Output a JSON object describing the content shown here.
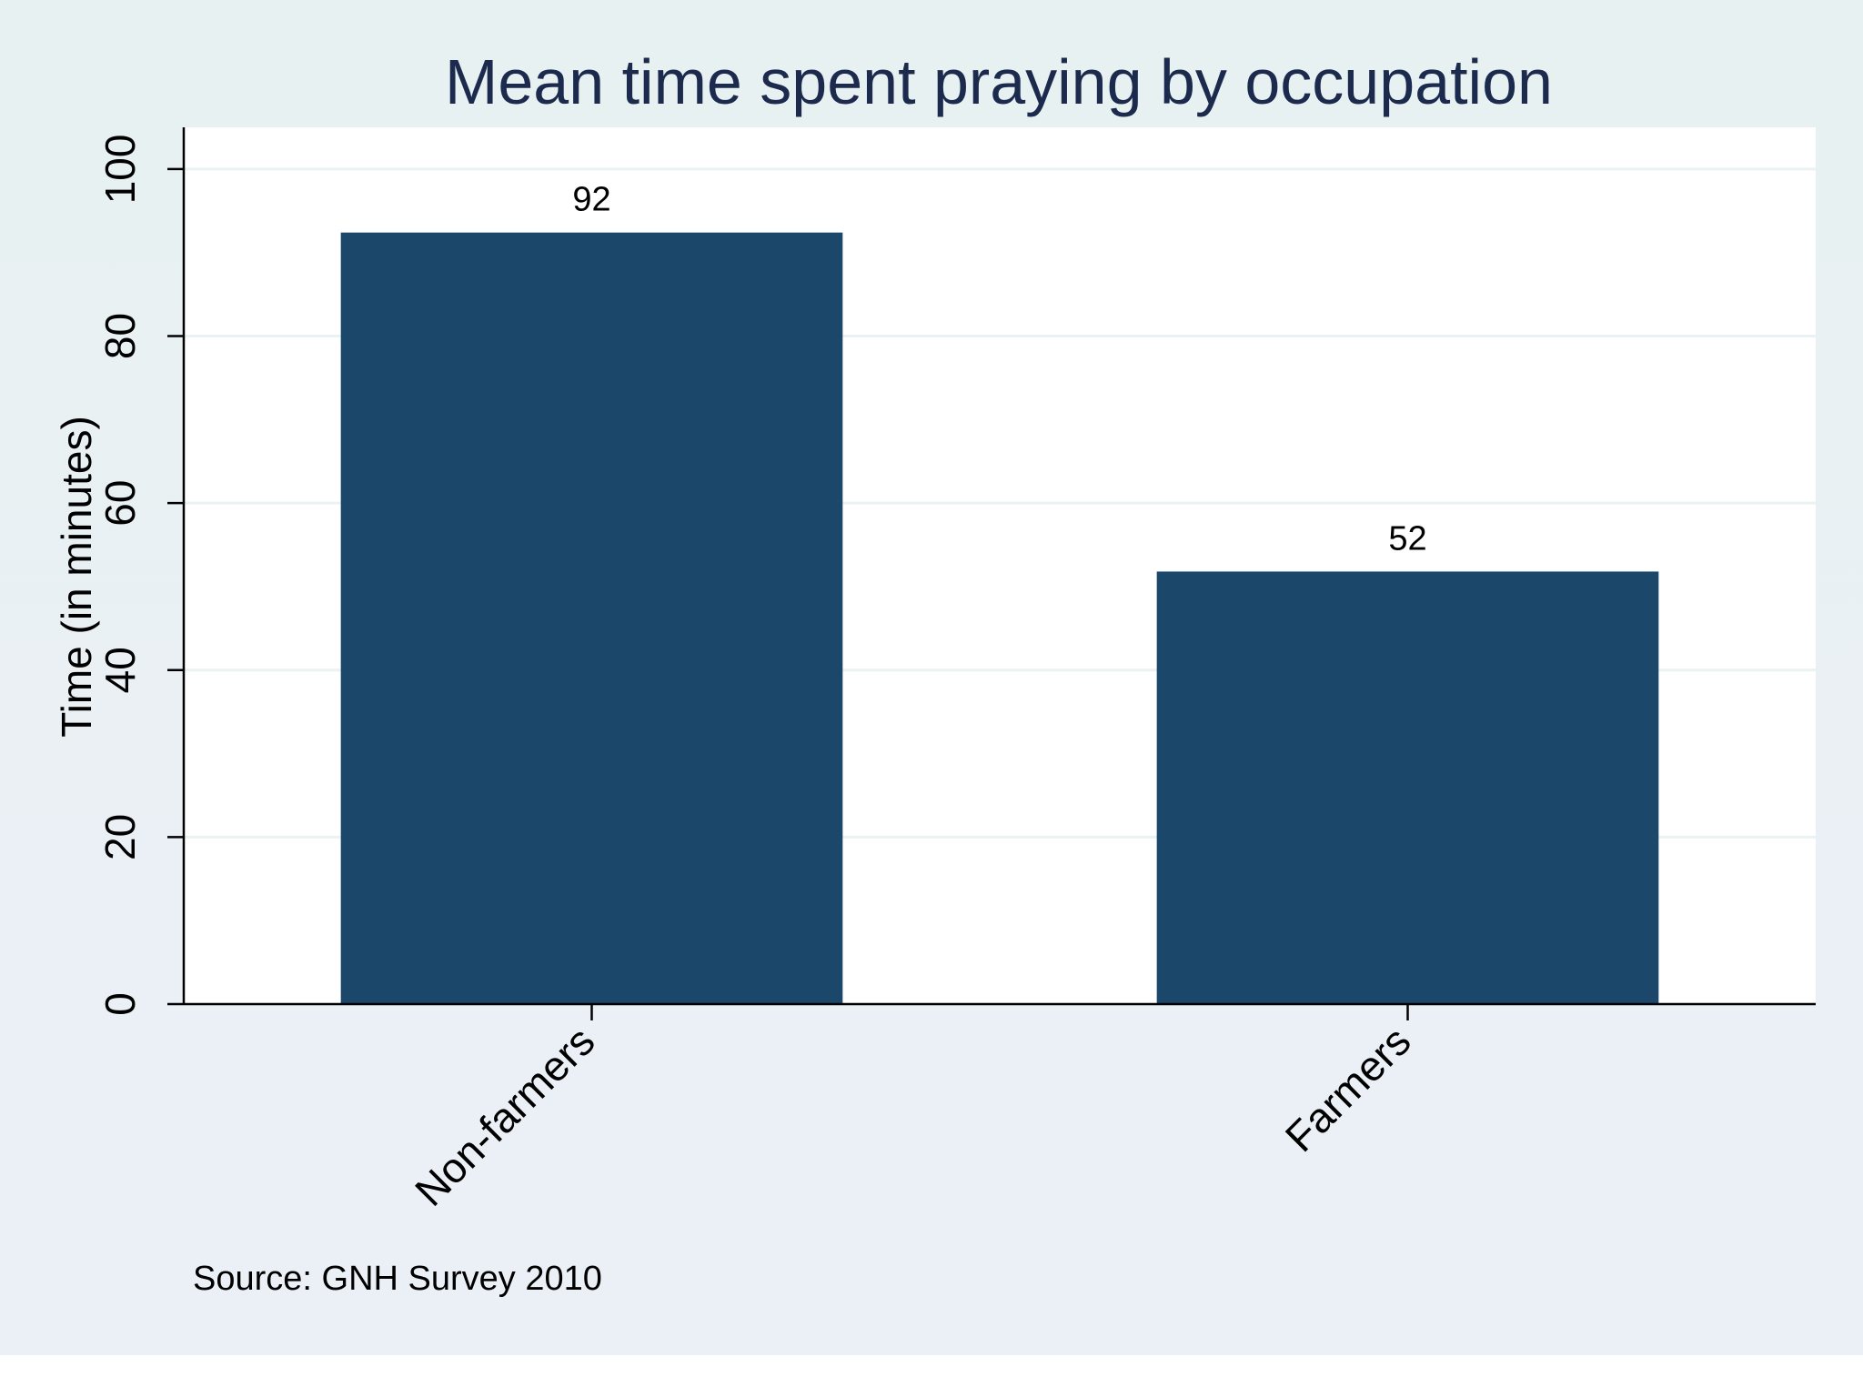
{
  "chart_data": {
    "type": "bar",
    "title": "Mean time spent praying by occupation",
    "categories": [
      "Non-farmers",
      "Farmers"
    ],
    "values": [
      92.4,
      51.8
    ],
    "value_labels": [
      "92",
      "52"
    ],
    "xlabel": "",
    "ylabel": "Time (in minutes)",
    "ylim": [
      0,
      105
    ],
    "yticks": [
      0,
      20,
      40,
      60,
      80,
      100
    ],
    "ytick_labels": [
      "0",
      "20",
      "40",
      "60",
      "80",
      "100"
    ],
    "grid": true,
    "note": "Source: GNH Survey 2010",
    "colors": {
      "bar": "#1b476b",
      "title": "#1c2a4e",
      "background": "#eaf2f3",
      "plot_background": "#ffffff",
      "grid": "#eaf2f3"
    }
  }
}
